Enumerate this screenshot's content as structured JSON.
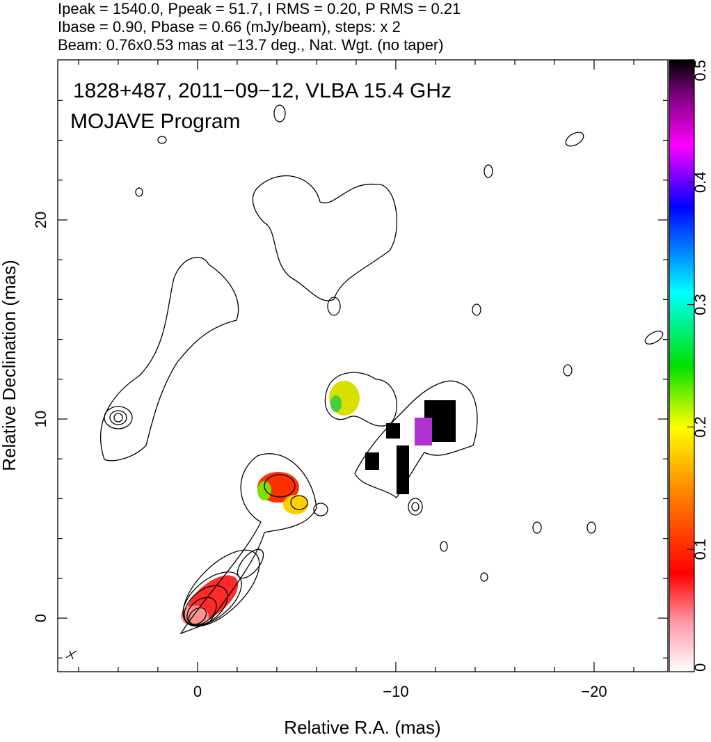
{
  "chart_data": {
    "type": "image",
    "header": [
      "Ipeak = 1540.0, Ppeak = 51.7, I RMS = 0.20, P RMS = 0.21",
      "Ibase = 0.90, Pbase = 0.66 (mJy/beam), steps: x 2",
      "Beam: 0.76x0.53 mas at −13.7 deg., Nat. Wgt. (no taper)"
    ],
    "title": "1828+487, 2011−09−12, VLBA 15.4 GHz",
    "subtitle": "MOJAVE Program",
    "x_label": "Relative R.A. (mas)",
    "y_label": "Relative Declination (mas)",
    "xlim": [
      7.05,
      -23.72
    ],
    "ylim": [
      -2.69,
      28.04
    ],
    "xticks": [
      0,
      {
        "value": -10,
        "label": "−10"
      },
      {
        "value": -20,
        "label": "−20"
      }
    ],
    "xticks_minor": [
      6,
      4,
      2,
      -2,
      -4,
      -6,
      -8,
      -12,
      -14,
      -16,
      -18,
      -22
    ],
    "yticks": [
      0,
      10,
      20
    ],
    "yticks_minor": [
      -2,
      2,
      4,
      6,
      8,
      12,
      14,
      16,
      18,
      22,
      24,
      26
    ],
    "colorbar": {
      "lim": [
        0,
        0.5
      ],
      "ticks": [
        0,
        0.1,
        0.2,
        0.3,
        0.4,
        0.5
      ]
    }
  }
}
